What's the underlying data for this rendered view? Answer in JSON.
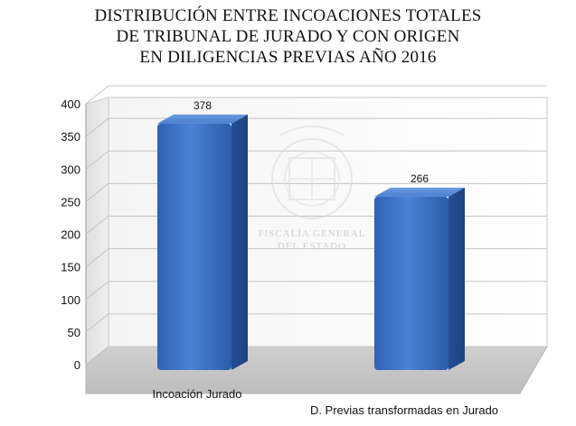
{
  "chart_data": {
    "type": "bar",
    "title": [
      "DISTRIBUCIÓN ENTRE INCOACIONES TOTALES",
      "DE TRIBUNAL DE JURADO Y CON ORIGEN",
      "EN DILIGENCIAS PREVIAS AÑO 2016"
    ],
    "categories": [
      "Incoación Jurado",
      "D. Previas transformadas en Jurado"
    ],
    "values": [
      378,
      266
    ],
    "data_labels": [
      "378",
      "266"
    ],
    "yticks": [
      0,
      50,
      100,
      150,
      200,
      250,
      300,
      350,
      400
    ],
    "ylim": [
      0,
      400
    ],
    "grid": true,
    "style": "3d-column",
    "bar_color": "#3b72c4"
  },
  "watermark": {
    "line1": "FISCALÍA GENERAL",
    "line2": "DEL ESTADO"
  }
}
